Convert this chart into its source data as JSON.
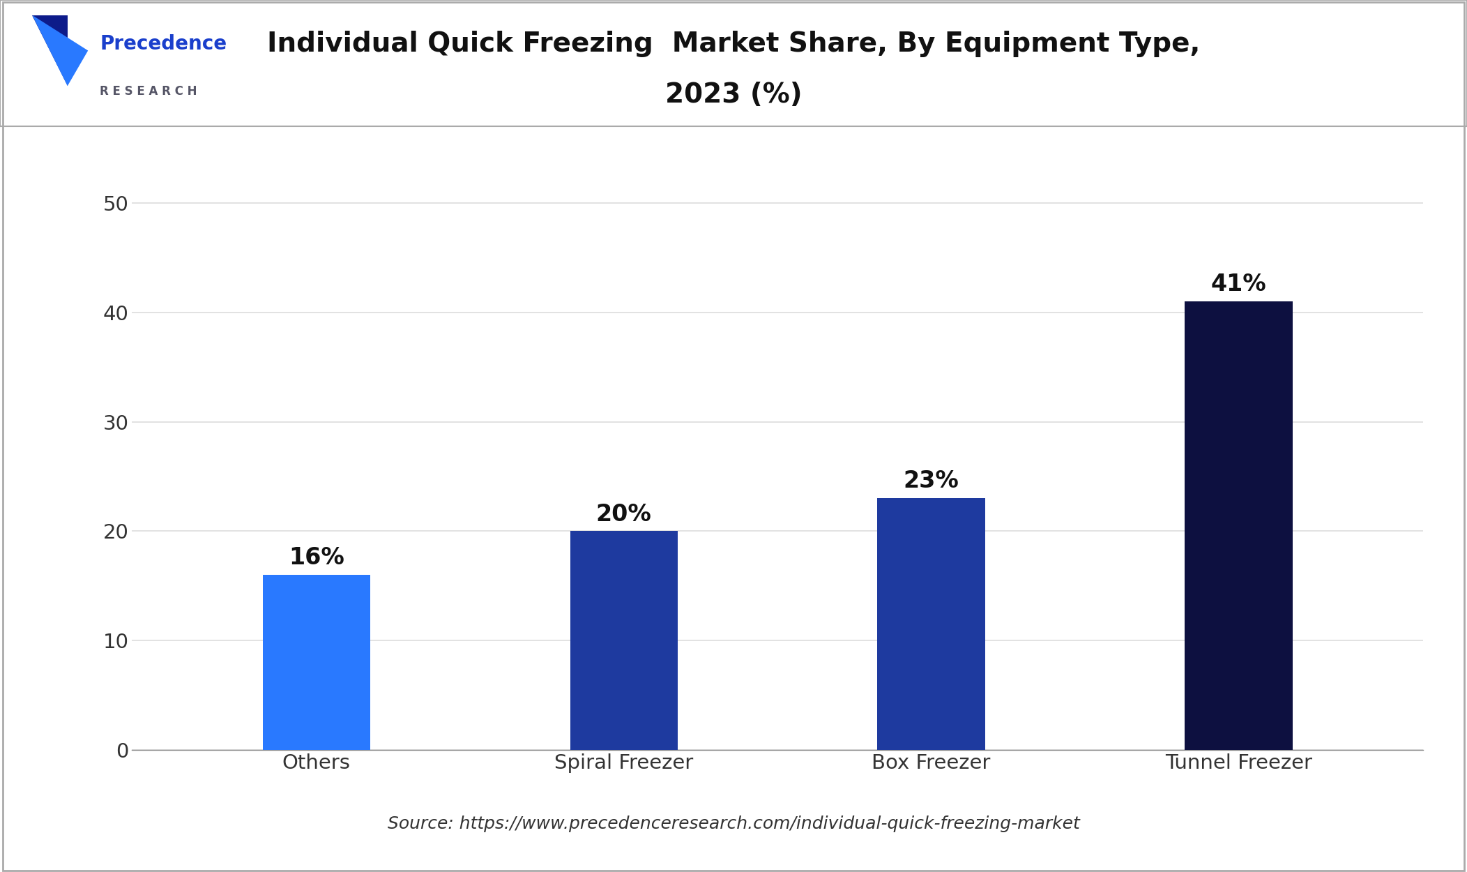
{
  "categories": [
    "Others",
    "Spiral Freezer",
    "Box Freezer",
    "Tunnel Freezer"
  ],
  "values": [
    16,
    20,
    23,
    41
  ],
  "bar_colors": [
    "#2979FF",
    "#1e3a9f",
    "#1e3a9f",
    "#0d1040"
  ],
  "labels": [
    "16%",
    "20%",
    "23%",
    "41%"
  ],
  "title_line1": "Individual Quick Freezing  Market Share, By Equipment Type,",
  "title_line2": "2023 (%)",
  "title_fontsize": 28,
  "ylabel_ticks": [
    0,
    10,
    20,
    30,
    40,
    50
  ],
  "ylim": [
    0,
    55
  ],
  "source_text": "Source: https://www.precedenceresearch.com/individual-quick-freezing-market",
  "background_color": "#ffffff",
  "bar_width": 0.35,
  "label_fontsize": 24,
  "tick_fontsize": 21,
  "source_fontsize": 18,
  "axis_label_color": "#333333",
  "grid_color": "#dddddd",
  "header_line_color": "#aaaaaa",
  "precedence_color": "#1a3fcc",
  "research_color": "#555566",
  "logo_dark": "#0d1b8a",
  "logo_light": "#2979FF"
}
